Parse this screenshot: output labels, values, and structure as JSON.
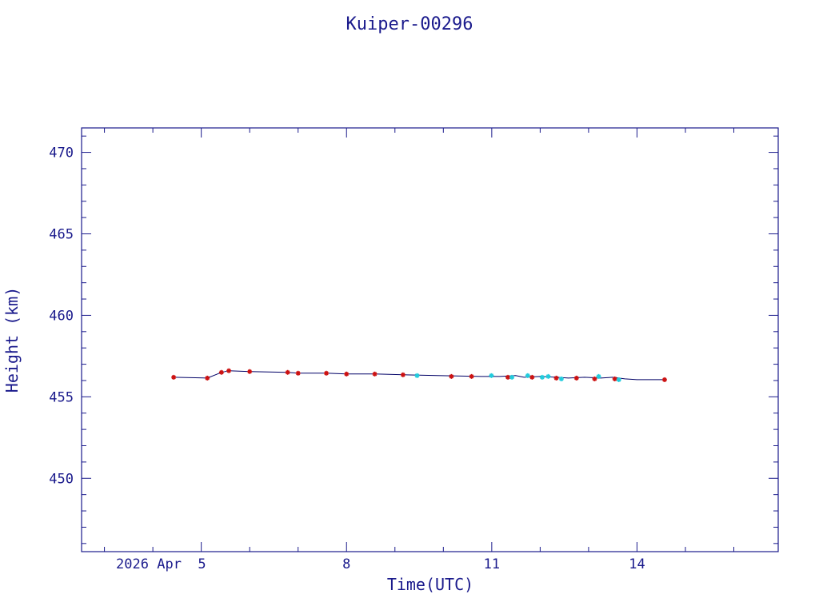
{
  "chart_data": {
    "type": "scatter",
    "title": "Kuiper-00296",
    "xlabel": "Time(UTC)",
    "ylabel": "Height (km)",
    "ylim": [
      445.5,
      471.5
    ],
    "xlim": [
      "2026-04-02T12:40",
      "2026-04-16T22:00"
    ],
    "x_tick_labels": [
      {
        "date": "2026-04-05",
        "label": "2026 Apr  5"
      },
      {
        "date": "2026-04-08",
        "label": "8"
      },
      {
        "date": "2026-04-11",
        "label": "11"
      },
      {
        "date": "2026-04-14",
        "label": "14"
      }
    ],
    "y_ticks": [
      450,
      455,
      460,
      465,
      470
    ],
    "grid": false,
    "line_series": {
      "color": "#000066",
      "points": [
        [
          "2026-04-04T10:20",
          456.2
        ],
        [
          "2026-04-05T03:00",
          456.15
        ],
        [
          "2026-04-05T10:00",
          456.5
        ],
        [
          "2026-04-05T13:40",
          456.6
        ],
        [
          "2026-04-06T00:00",
          456.55
        ],
        [
          "2026-04-06T18:50",
          456.5
        ],
        [
          "2026-04-07T00:00",
          456.45
        ],
        [
          "2026-04-07T14:00",
          456.45
        ],
        [
          "2026-04-08T00:00",
          456.4
        ],
        [
          "2026-04-08T14:00",
          456.4
        ],
        [
          "2026-04-09T04:00",
          456.35
        ],
        [
          "2026-04-09T21:00",
          456.3
        ],
        [
          "2026-04-10T19:00",
          456.25
        ],
        [
          "2026-04-11T04:00",
          456.25
        ],
        [
          "2026-04-11T11:50",
          456.3
        ],
        [
          "2026-04-11T16:00",
          456.2
        ],
        [
          "2026-04-12T00:00",
          456.25
        ],
        [
          "2026-04-12T08:00",
          456.2
        ],
        [
          "2026-04-12T14:00",
          456.15
        ],
        [
          "2026-04-12T22:00",
          456.2
        ],
        [
          "2026-04-13T06:00",
          456.15
        ],
        [
          "2026-04-13T12:00",
          456.2
        ],
        [
          "2026-04-13T18:00",
          456.1
        ],
        [
          "2026-04-14T00:00",
          456.05
        ],
        [
          "2026-04-14T13:40",
          456.05
        ]
      ]
    },
    "series": [
      {
        "color": "#cc1111",
        "points": [
          [
            "2026-04-04T10:20",
            456.2
          ],
          [
            "2026-04-05T03:00",
            456.15
          ],
          [
            "2026-04-05T10:00",
            456.5
          ],
          [
            "2026-04-05T13:40",
            456.6
          ],
          [
            "2026-04-06T00:00",
            456.55
          ],
          [
            "2026-04-06T18:50",
            456.5
          ],
          [
            "2026-04-07T00:00",
            456.45
          ],
          [
            "2026-04-07T14:00",
            456.45
          ],
          [
            "2026-04-08T00:00",
            456.4
          ],
          [
            "2026-04-08T14:00",
            456.4
          ],
          [
            "2026-04-09T04:00",
            456.35
          ],
          [
            "2026-04-10T04:00",
            456.25
          ],
          [
            "2026-04-10T14:00",
            456.25
          ],
          [
            "2026-04-11T08:00",
            456.2
          ],
          [
            "2026-04-11T20:00",
            456.2
          ],
          [
            "2026-04-12T08:00",
            456.15
          ],
          [
            "2026-04-12T18:00",
            456.15
          ],
          [
            "2026-04-13T03:00",
            456.1
          ],
          [
            "2026-04-13T13:00",
            456.1
          ],
          [
            "2026-04-14T13:40",
            456.05
          ]
        ]
      },
      {
        "color": "#22ccdd",
        "points": [
          [
            "2026-04-09T11:00",
            456.3
          ],
          [
            "2026-04-10T23:50",
            456.3
          ],
          [
            "2026-04-11T10:00",
            456.2
          ],
          [
            "2026-04-11T17:50",
            456.3
          ],
          [
            "2026-04-12T01:00",
            456.2
          ],
          [
            "2026-04-12T04:00",
            456.25
          ],
          [
            "2026-04-12T10:30",
            456.1
          ],
          [
            "2026-04-13T05:00",
            456.25
          ],
          [
            "2026-04-13T15:00",
            456.05
          ]
        ]
      }
    ]
  }
}
